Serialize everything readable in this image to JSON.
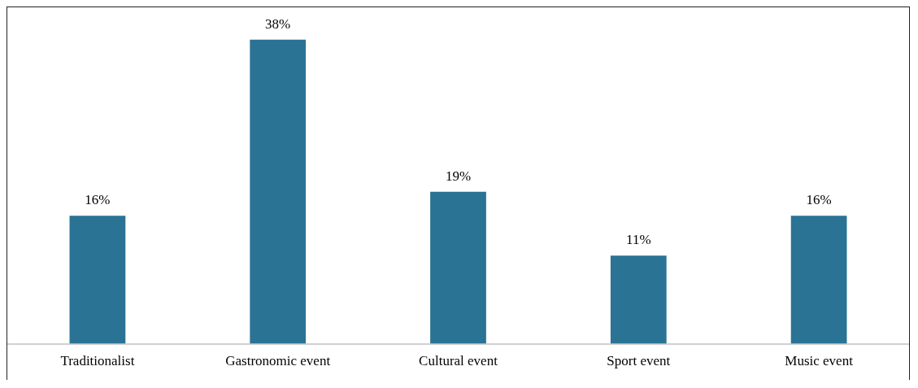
{
  "chart_data": {
    "type": "bar",
    "categories": [
      "Traditionalist",
      "Gastronomic event",
      "Cultural event",
      "Sport event",
      "Music event"
    ],
    "values": [
      16,
      38,
      19,
      11,
      16
    ],
    "value_labels": [
      "16%",
      "38%",
      "19%",
      "11%",
      "16%"
    ],
    "color": "#2a7394",
    "grid": false,
    "legend": false
  }
}
